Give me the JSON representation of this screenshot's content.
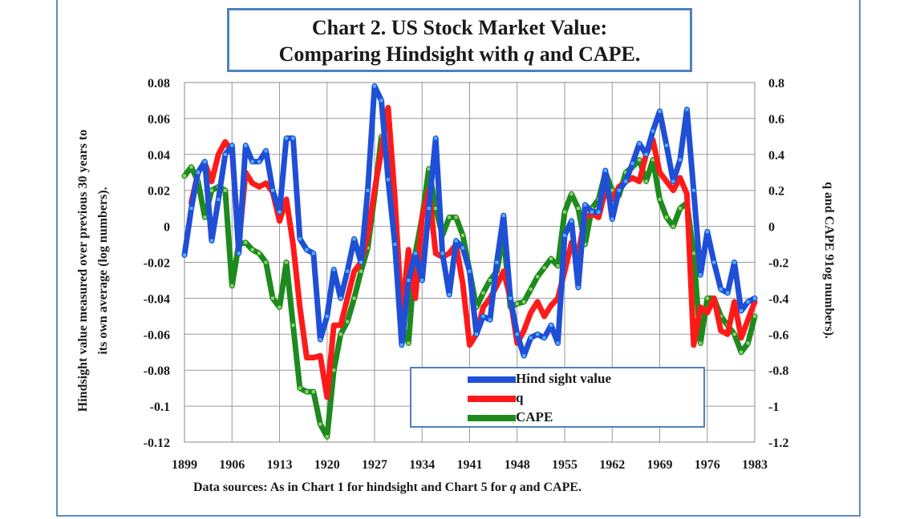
{
  "title": {
    "line1": "Chart 2. US Stock Market Value:",
    "line2_pre": "Comparing Hindsight with ",
    "line2_italic": "q",
    "line2_post": " and CAPE."
  },
  "source": {
    "pre": "Data  sources: As in Chart  1 for hindsight and  Chart 5 for ",
    "italic": "q",
    "post": " and  CAPE."
  },
  "chart_data": {
    "type": "line",
    "title": "Chart 2. US Stock Market Value: Comparing Hindsight with q and CAPE.",
    "xlabel": "",
    "ylabel": "Hindsight value measured over previous 30 years to its own average (log numbers).",
    "y2label": "q and CAPE 91og numbers).",
    "xlim": [
      1899,
      1983
    ],
    "ylim": [
      -0.12,
      0.08
    ],
    "y2lim": [
      -1.2,
      0.8
    ],
    "x_ticks": [
      "1899",
      "1906",
      "1913",
      "1920",
      "1927",
      "1934",
      "1941",
      "1948",
      "1955",
      "1962",
      "1969",
      "1976",
      "1983"
    ],
    "y_ticks": [
      "0.08",
      "0.06",
      "0.04",
      "0.02",
      "0",
      "-0.02",
      "-0.04",
      "-0.06",
      "-0.08",
      "-0.1",
      "-0.12"
    ],
    "y2_ticks": [
      "0.8",
      "0.6",
      "0.4",
      "0.2",
      "0",
      "-0.2",
      "-0.4",
      "-0.6",
      "-0.8",
      "-1",
      "-1.2"
    ],
    "legend": "center-bottom",
    "series": [
      {
        "name": "Hind sight value",
        "axis": "left",
        "color": "#1f4fd6",
        "x": [
          1899,
          1900,
          1901,
          1902,
          1903,
          1904,
          1905,
          1906,
          1907,
          1908,
          1909,
          1910,
          1911,
          1912,
          1913,
          1914,
          1915,
          1916,
          1917,
          1918,
          1919,
          1920,
          1921,
          1922,
          1923,
          1924,
          1925,
          1926,
          1927,
          1928,
          1929,
          1930,
          1931,
          1932,
          1933,
          1934,
          1935,
          1936,
          1937,
          1938,
          1939,
          1940,
          1941,
          1942,
          1943,
          1944,
          1945,
          1946,
          1947,
          1948,
          1949,
          1950,
          1951,
          1952,
          1953,
          1954,
          1955,
          1956,
          1957,
          1958,
          1959,
          1960,
          1961,
          1962,
          1963,
          1964,
          1965,
          1966,
          1967,
          1968,
          1969,
          1970,
          1971,
          1972,
          1973,
          1974,
          1975,
          1976,
          1977,
          1978,
          1979,
          1980,
          1981,
          1982,
          1983
        ],
        "values": [
          -0.016,
          0.01,
          0.03,
          0.036,
          -0.008,
          0.015,
          0.04,
          0.045,
          -0.015,
          0.045,
          0.036,
          0.036,
          0.042,
          0.02,
          0.008,
          0.049,
          0.049,
          -0.007,
          -0.013,
          -0.015,
          -0.063,
          -0.05,
          -0.024,
          -0.04,
          -0.025,
          -0.007,
          -0.02,
          0.02,
          0.078,
          0.07,
          0.026,
          -0.01,
          -0.066,
          -0.03,
          -0.015,
          -0.03,
          0.01,
          0.049,
          -0.015,
          -0.038,
          -0.008,
          -0.012,
          -0.025,
          -0.06,
          -0.05,
          -0.052,
          -0.02,
          0.006,
          -0.04,
          -0.06,
          -0.072,
          -0.062,
          -0.06,
          -0.062,
          -0.055,
          -0.065,
          -0.005,
          0.003,
          -0.034,
          0.012,
          0.008,
          0.008,
          0.031,
          0.004,
          0.02,
          0.025,
          0.035,
          0.046,
          0.04,
          0.053,
          0.064,
          0.045,
          0.025,
          0.037,
          0.065,
          0.02,
          -0.027,
          -0.003,
          -0.02,
          -0.035,
          -0.037,
          -0.02,
          -0.047,
          -0.042,
          -0.04
        ]
      },
      {
        "name": "q",
        "axis": "right",
        "color": "#ff1a1a",
        "x": [
          1900,
          1901,
          1902,
          1903,
          1904,
          1905,
          1906,
          1907,
          1908,
          1909,
          1910,
          1911,
          1912,
          1913,
          1914,
          1915,
          1916,
          1917,
          1918,
          1919,
          1920,
          1921,
          1922,
          1923,
          1924,
          1925,
          1926,
          1927,
          1928,
          1929,
          1930,
          1931,
          1932,
          1933,
          1934,
          1935,
          1936,
          1937,
          1938,
          1939,
          1940,
          1941,
          1942,
          1943,
          1944,
          1945,
          1946,
          1947,
          1948,
          1949,
          1950,
          1951,
          1952,
          1953,
          1954,
          1955,
          1956,
          1957,
          1958,
          1959,
          1960,
          1961,
          1962,
          1963,
          1964,
          1965,
          1966,
          1967,
          1968,
          1969,
          1970,
          1971,
          1972,
          1973,
          1974,
          1975,
          1976,
          1977,
          1978,
          1979,
          1980,
          1981,
          1982,
          1983
        ],
        "values": [
          0.13,
          0.3,
          0.35,
          0.25,
          0.4,
          0.47,
          0.42,
          -0.1,
          0.3,
          0.24,
          0.22,
          0.24,
          0.19,
          0.03,
          0.15,
          -0.1,
          -0.45,
          -0.73,
          -0.73,
          -0.72,
          -0.95,
          -0.55,
          -0.55,
          -0.4,
          -0.25,
          -0.2,
          -0.05,
          0.2,
          0.42,
          0.66,
          0.15,
          -0.5,
          -0.13,
          -0.4,
          0.05,
          0.2,
          -0.15,
          -0.17,
          -0.15,
          -0.1,
          -0.32,
          -0.66,
          -0.6,
          -0.45,
          -0.4,
          -0.33,
          -0.25,
          -0.4,
          -0.65,
          -0.58,
          -0.48,
          -0.42,
          -0.5,
          -0.44,
          -0.4,
          -0.25,
          -0.09,
          -0.15,
          0.05,
          0.07,
          0.05,
          0.2,
          0.15,
          0.22,
          0.25,
          0.27,
          0.25,
          0.4,
          0.48,
          0.3,
          0.25,
          0.2,
          0.27,
          0.18,
          -0.66,
          -0.45,
          -0.48,
          -0.4,
          -0.58,
          -0.6,
          -0.42,
          -0.62,
          -0.52,
          -0.42
        ]
      },
      {
        "name": "CAPE",
        "axis": "right",
        "color": "#1e8a1e",
        "x": [
          1899,
          1900,
          1901,
          1902,
          1903,
          1904,
          1905,
          1906,
          1907,
          1908,
          1909,
          1910,
          1911,
          1912,
          1913,
          1914,
          1915,
          1916,
          1917,
          1918,
          1919,
          1920,
          1921,
          1922,
          1923,
          1924,
          1925,
          1926,
          1927,
          1928,
          1929,
          1930,
          1931,
          1932,
          1933,
          1934,
          1935,
          1936,
          1937,
          1938,
          1939,
          1940,
          1941,
          1942,
          1943,
          1944,
          1945,
          1946,
          1947,
          1948,
          1949,
          1950,
          1951,
          1952,
          1953,
          1954,
          1955,
          1956,
          1957,
          1958,
          1959,
          1960,
          1961,
          1962,
          1963,
          1964,
          1965,
          1966,
          1967,
          1968,
          1969,
          1970,
          1971,
          1972,
          1973,
          1974,
          1975,
          1976,
          1977,
          1978,
          1979,
          1980,
          1981,
          1982,
          1983
        ],
        "values": [
          0.28,
          0.33,
          0.25,
          0.05,
          0.2,
          0.22,
          0.2,
          -0.33,
          -0.1,
          -0.09,
          -0.13,
          -0.15,
          -0.2,
          -0.4,
          -0.45,
          -0.2,
          -0.55,
          -0.9,
          -0.92,
          -0.92,
          -1.1,
          -1.17,
          -0.8,
          -0.6,
          -0.53,
          -0.4,
          -0.25,
          -0.12,
          0.17,
          0.5,
          0.37,
          -0.1,
          -0.55,
          -0.65,
          -0.15,
          0.05,
          0.32,
          0.1,
          -0.05,
          0.05,
          0.05,
          -0.05,
          -0.25,
          -0.45,
          -0.37,
          -0.3,
          -0.25,
          -0.05,
          -0.45,
          -0.43,
          -0.42,
          -0.35,
          -0.28,
          -0.23,
          -0.18,
          -0.22,
          0.08,
          0.18,
          0.1,
          -0.1,
          0.1,
          0.15,
          0.3,
          0.2,
          0.17,
          0.3,
          0.33,
          0.37,
          0.25,
          0.37,
          0.15,
          0.05,
          0.0,
          0.1,
          0.13,
          -0.15,
          -0.65,
          -0.4,
          -0.4,
          -0.5,
          -0.55,
          -0.6,
          -0.7,
          -0.65,
          -0.5
        ]
      }
    ]
  }
}
